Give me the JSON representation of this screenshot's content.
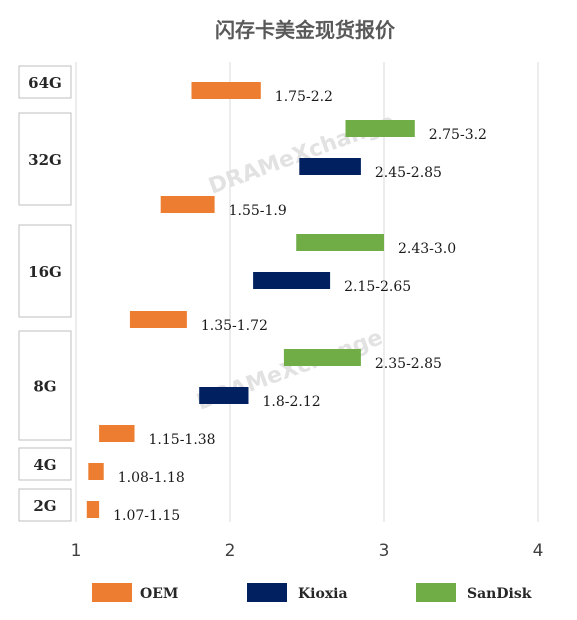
{
  "chart_data": {
    "type": "bar",
    "subtype": "floating-range-horizontal",
    "title": "闪存卡美金现货报价",
    "xlim": [
      1,
      4.2
    ],
    "x_ticks": [
      "1",
      "2",
      "3",
      "4"
    ],
    "grid": true,
    "legend_position": "bottom",
    "series_colors": {
      "OEM": "#ed7d31",
      "Kioxia": "#002060",
      "SanDisk": "#70ad47"
    },
    "categories": [
      "64G",
      "32G",
      "16G",
      "8G",
      "4G",
      "2G"
    ],
    "bars": [
      {
        "category": "64G",
        "series": "OEM",
        "low": 1.75,
        "high": 2.2,
        "label": "1.75-2.2"
      },
      {
        "category": "32G",
        "series": "SanDisk",
        "low": 2.75,
        "high": 3.2,
        "label": "2.75-3.2"
      },
      {
        "category": "32G",
        "series": "Kioxia",
        "low": 2.45,
        "high": 2.85,
        "label": "2.45-2.85"
      },
      {
        "category": "32G",
        "series": "OEM",
        "low": 1.55,
        "high": 1.9,
        "label": "1.55-1.9"
      },
      {
        "category": "16G",
        "series": "SanDisk",
        "low": 2.43,
        "high": 3.0,
        "label": "2.43-3.0"
      },
      {
        "category": "16G",
        "series": "Kioxia",
        "low": 2.15,
        "high": 2.65,
        "label": "2.15-2.65"
      },
      {
        "category": "16G",
        "series": "OEM",
        "low": 1.35,
        "high": 1.72,
        "label": "1.35-1.72"
      },
      {
        "category": "8G",
        "series": "SanDisk",
        "low": 2.35,
        "high": 2.85,
        "label": "2.35-2.85"
      },
      {
        "category": "8G",
        "series": "Kioxia",
        "low": 1.8,
        "high": 2.12,
        "label": "1.8-2.12"
      },
      {
        "category": "8G",
        "series": "OEM",
        "low": 1.15,
        "high": 1.38,
        "label": "1.15-1.38"
      },
      {
        "category": "4G",
        "series": "OEM",
        "low": 1.08,
        "high": 1.18,
        "label": "1.08-1.18"
      },
      {
        "category": "2G",
        "series": "OEM",
        "low": 1.07,
        "high": 1.15,
        "label": "1.07-1.15"
      }
    ],
    "legend": [
      "OEM",
      "Kioxia",
      "SanDisk"
    ],
    "watermark": "DRAMeXchange"
  }
}
